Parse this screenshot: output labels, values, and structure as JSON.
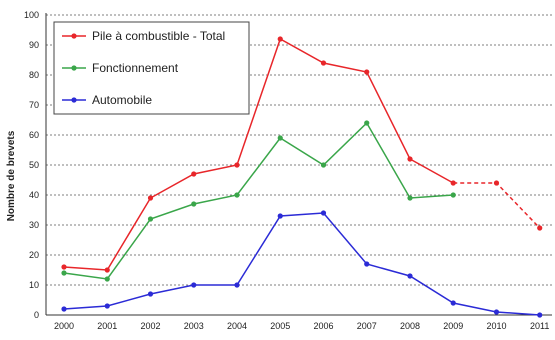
{
  "chart_data": {
    "type": "line",
    "title": "",
    "xlabel": "",
    "ylabel": "Nombre de brevets",
    "ylim": [
      0,
      100
    ],
    "yticks": [
      0,
      10,
      20,
      30,
      40,
      50,
      60,
      70,
      80,
      90,
      100
    ],
    "categories": [
      "2000",
      "2001",
      "2002",
      "2003",
      "2004",
      "2005",
      "2006",
      "2007",
      "2008",
      "2009",
      "2010",
      "2011"
    ],
    "grid": "horizontal dotted",
    "legend": "top-left",
    "series": [
      {
        "name": "Pile à combustible - Total",
        "color": "#e8262a",
        "values": [
          16,
          15,
          39,
          47,
          50,
          92,
          84,
          81,
          52,
          44,
          null,
          null
        ],
        "dashed": {
          "x": [
            "2009",
            "2010",
            "2011"
          ],
          "values": [
            44,
            44,
            29
          ]
        }
      },
      {
        "name": "Fonctionnement",
        "color": "#3aa64a",
        "values": [
          14,
          12,
          32,
          37,
          40,
          59,
          50,
          64,
          39,
          40,
          null,
          null
        ]
      },
      {
        "name": "Automobile",
        "color": "#2b2bd6",
        "values": [
          2,
          3,
          7,
          10,
          10,
          33,
          34,
          17,
          13,
          4,
          1,
          0
        ]
      }
    ]
  }
}
